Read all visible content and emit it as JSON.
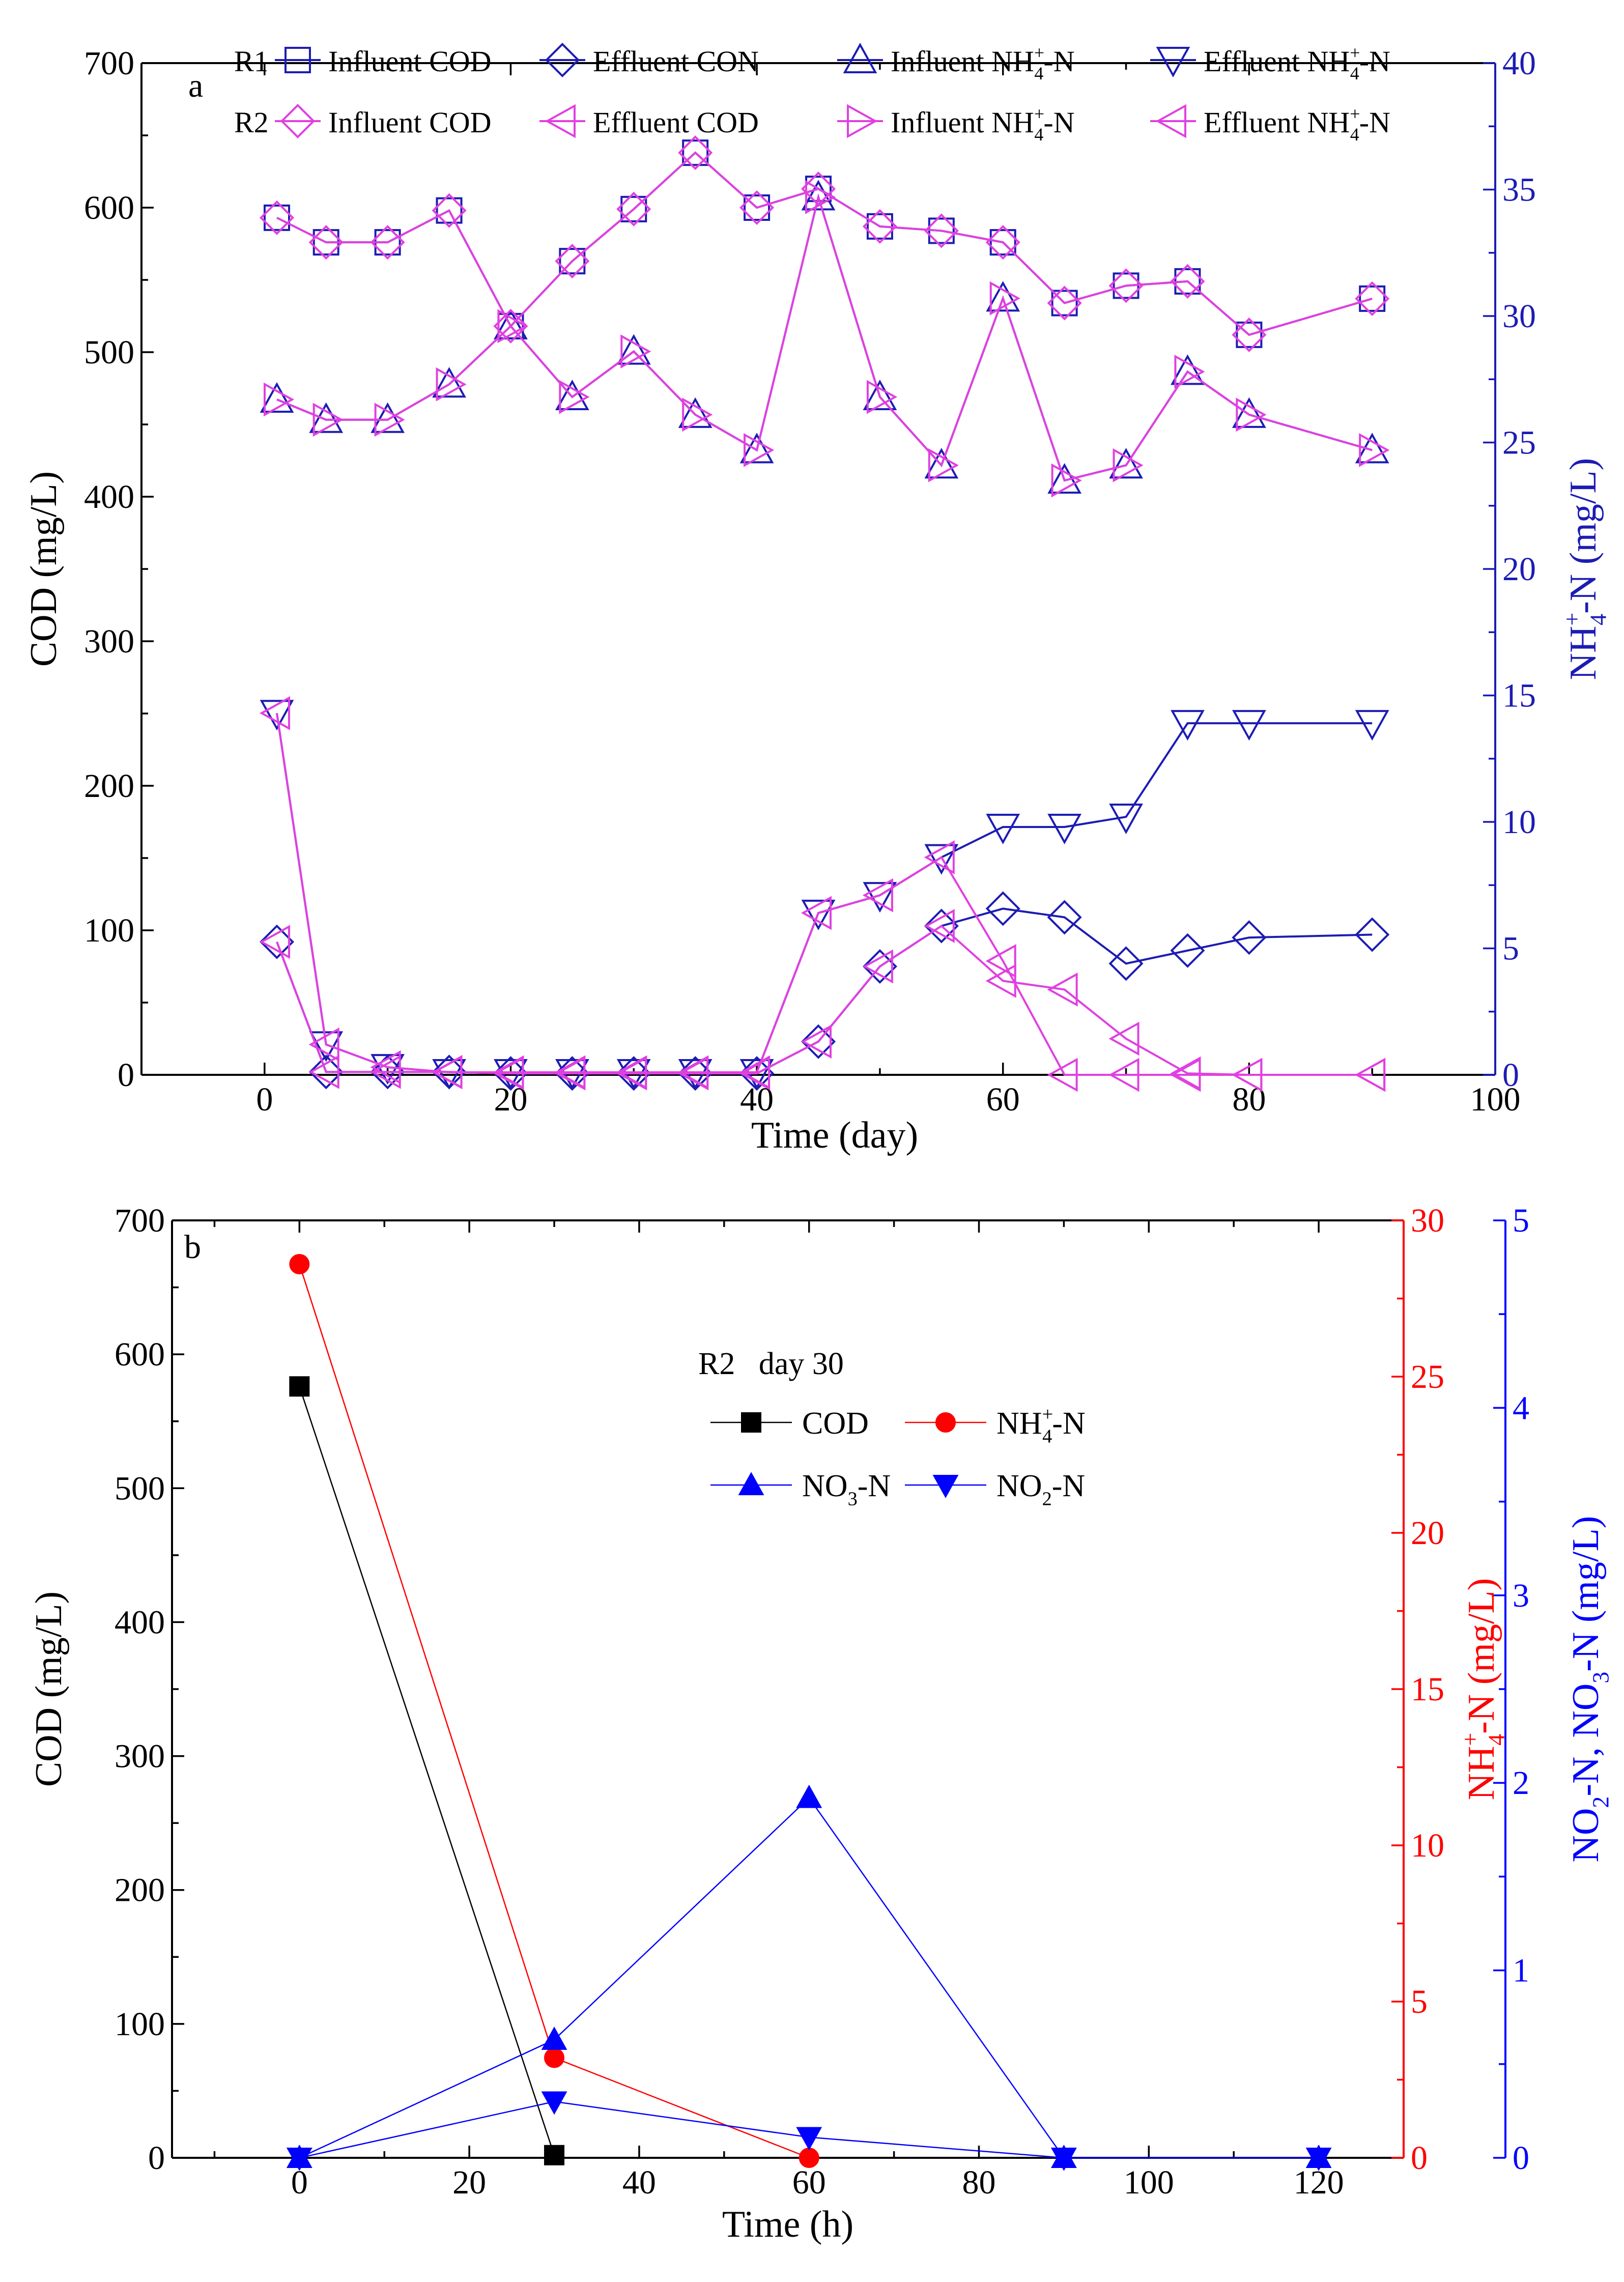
{
  "colors": {
    "black": "#000000",
    "r1": "#1c1cb4",
    "r2": "#e040e0",
    "red": "#ff0000",
    "blue": "#0000ff"
  },
  "chart_data": [
    {
      "type": "line",
      "panel_label": "a",
      "xlabel": "Time (day)",
      "ylabel": "COD (mg/L)",
      "y2label": "NH4+-N (mg/L)",
      "xlim": [
        -10,
        100
      ],
      "ylim": [
        0,
        700
      ],
      "y2lim": [
        0,
        40
      ],
      "xticks": [
        0,
        20,
        40,
        60,
        80,
        100
      ],
      "yticks": [
        0,
        100,
        200,
        300,
        400,
        500,
        600,
        700
      ],
      "y2ticks": [
        0,
        5,
        10,
        15,
        20,
        25,
        30,
        35,
        40
      ],
      "legend": {
        "rows": [
          {
            "group": "R1",
            "entries": [
              {
                "name": "Influent COD",
                "series": 0
              },
              {
                "name": "Effluent CON",
                "series": 1
              },
              {
                "name": "Influent NH4+-N",
                "series": 2
              },
              {
                "name": "Effluent NH4+-N",
                "series": 3
              }
            ]
          },
          {
            "group": "R2",
            "entries": [
              {
                "name": "Influent COD",
                "series": 4
              },
              {
                "name": "Effluent COD",
                "series": 5
              },
              {
                "name": "Influent NH4+-N",
                "series": 6
              },
              {
                "name": "Effluent NH4+-N",
                "series": 7
              }
            ]
          }
        ]
      },
      "x": [
        1,
        5,
        10,
        15,
        20,
        25,
        30,
        35,
        40,
        45,
        50,
        55,
        60,
        65,
        70,
        75,
        80,
        90
      ],
      "series": [
        {
          "name": "R1 Influent COD",
          "axis": "left",
          "marker": "square",
          "color": "#1c1cb4",
          "values": [
            593,
            576,
            576,
            598,
            518,
            563,
            599,
            638,
            600,
            613,
            587,
            584,
            576,
            534,
            546,
            549,
            512,
            537
          ]
        },
        {
          "name": "R1 Effluent CON",
          "axis": "left",
          "marker": "diamond",
          "color": "#1c1cb4",
          "values": [
            92,
            2,
            2,
            2,
            1,
            1,
            1,
            1,
            1,
            23,
            75,
            103,
            115,
            109,
            77,
            86,
            95,
            97
          ]
        },
        {
          "name": "R1 Influent NH4+-N",
          "axis": "right",
          "marker": "triangle-up",
          "color": "#1c1cb4",
          "values": [
            26.7,
            25.9,
            25.9,
            27.3,
            29.6,
            26.8,
            28.6,
            26.1,
            24.7,
            34.7,
            26.8,
            24.1,
            30.7,
            23.5,
            24.1,
            27.8,
            26.1,
            24.7
          ]
        },
        {
          "name": "R1 Effluent NH4+-N",
          "axis": "right",
          "marker": "triangle-down",
          "color": "#1c1cb4",
          "values": [
            14.3,
            1.2,
            0.3,
            0.1,
            0.1,
            0.1,
            0.1,
            0.1,
            0.1,
            6.4,
            7.1,
            8.6,
            9.8,
            9.8,
            10.2,
            13.9,
            13.9,
            13.9
          ]
        },
        {
          "name": "R2 Influent COD",
          "axis": "left",
          "marker": "diamond",
          "color": "#e040e0",
          "values": [
            593,
            576,
            576,
            598,
            518,
            563,
            599,
            638,
            600,
            613,
            587,
            584,
            576,
            534,
            546,
            549,
            512,
            537
          ]
        },
        {
          "name": "R2 Effluent COD",
          "axis": "left",
          "marker": "triangle-left",
          "color": "#e040e0",
          "values": [
            92,
            2,
            2,
            2,
            1,
            1,
            1,
            1,
            1,
            23,
            75,
            103,
            65,
            59,
            25,
            1,
            0,
            0
          ]
        },
        {
          "name": "R2 Influent NH4+-N",
          "axis": "right",
          "marker": "triangle-right",
          "color": "#e040e0",
          "values": [
            26.7,
            25.9,
            25.9,
            27.3,
            29.6,
            26.8,
            28.6,
            26.1,
            24.7,
            34.7,
            26.8,
            24.1,
            30.7,
            23.5,
            24.1,
            27.8,
            26.1,
            24.7
          ]
        },
        {
          "name": "R2 Effluent NH4+-N",
          "axis": "right",
          "marker": "triangle-left",
          "color": "#e040e0",
          "values": [
            14.3,
            1.2,
            0.3,
            0.1,
            0.1,
            0.1,
            0.1,
            0.1,
            0.1,
            6.4,
            7.1,
            8.6,
            4.5,
            0,
            0,
            0,
            0,
            0
          ]
        }
      ]
    },
    {
      "type": "line",
      "panel_label": "b",
      "title": "R2   day 30",
      "xlabel": "Time (h)",
      "ylabel": "COD (mg/L)",
      "y2label": "NH4+-N (mg/L)",
      "y3label": "NO2-N, NO3-N (mg/L)",
      "xlim": [
        -15,
        130
      ],
      "ylim": [
        0,
        700
      ],
      "y2lim": [
        0,
        30
      ],
      "y3lim": [
        0,
        5
      ],
      "xticks": [
        0,
        20,
        40,
        60,
        80,
        100,
        120
      ],
      "yticks": [
        0,
        100,
        200,
        300,
        400,
        500,
        600,
        700
      ],
      "y2ticks": [
        0,
        5,
        10,
        15,
        20,
        25,
        30
      ],
      "y3ticks": [
        0,
        1,
        2,
        3,
        4,
        5
      ],
      "legend": {
        "rows": [
          {
            "entries": [
              {
                "name": "COD",
                "series": 0
              },
              {
                "name": "NH4+-N",
                "series": 1
              }
            ]
          },
          {
            "entries": [
              {
                "name": "NO3-N",
                "series": 2
              },
              {
                "name": "NO2-N",
                "series": 3
              }
            ]
          }
        ]
      },
      "series": [
        {
          "name": "COD",
          "axis": "left",
          "marker": "square-filled",
          "color": "#000000",
          "x": [
            0,
            30
          ],
          "values": [
            576,
            2
          ]
        },
        {
          "name": "NH4+-N",
          "axis": "right",
          "marker": "circle-filled",
          "color": "#ff0000",
          "x": [
            0,
            30,
            60
          ],
          "values": [
            28.6,
            3.2,
            0
          ]
        },
        {
          "name": "NO3-N",
          "axis": "right2",
          "marker": "triangle-up-filled",
          "color": "#0000ff",
          "x": [
            0,
            30,
            60,
            90,
            120
          ],
          "values": [
            0,
            0.63,
            1.92,
            0,
            0
          ]
        },
        {
          "name": "NO2-N",
          "axis": "right2",
          "marker": "triangle-down-filled",
          "color": "#0000ff",
          "x": [
            0,
            30,
            60,
            90,
            120
          ],
          "values": [
            0,
            0.3,
            0.11,
            0,
            0
          ]
        }
      ]
    }
  ]
}
